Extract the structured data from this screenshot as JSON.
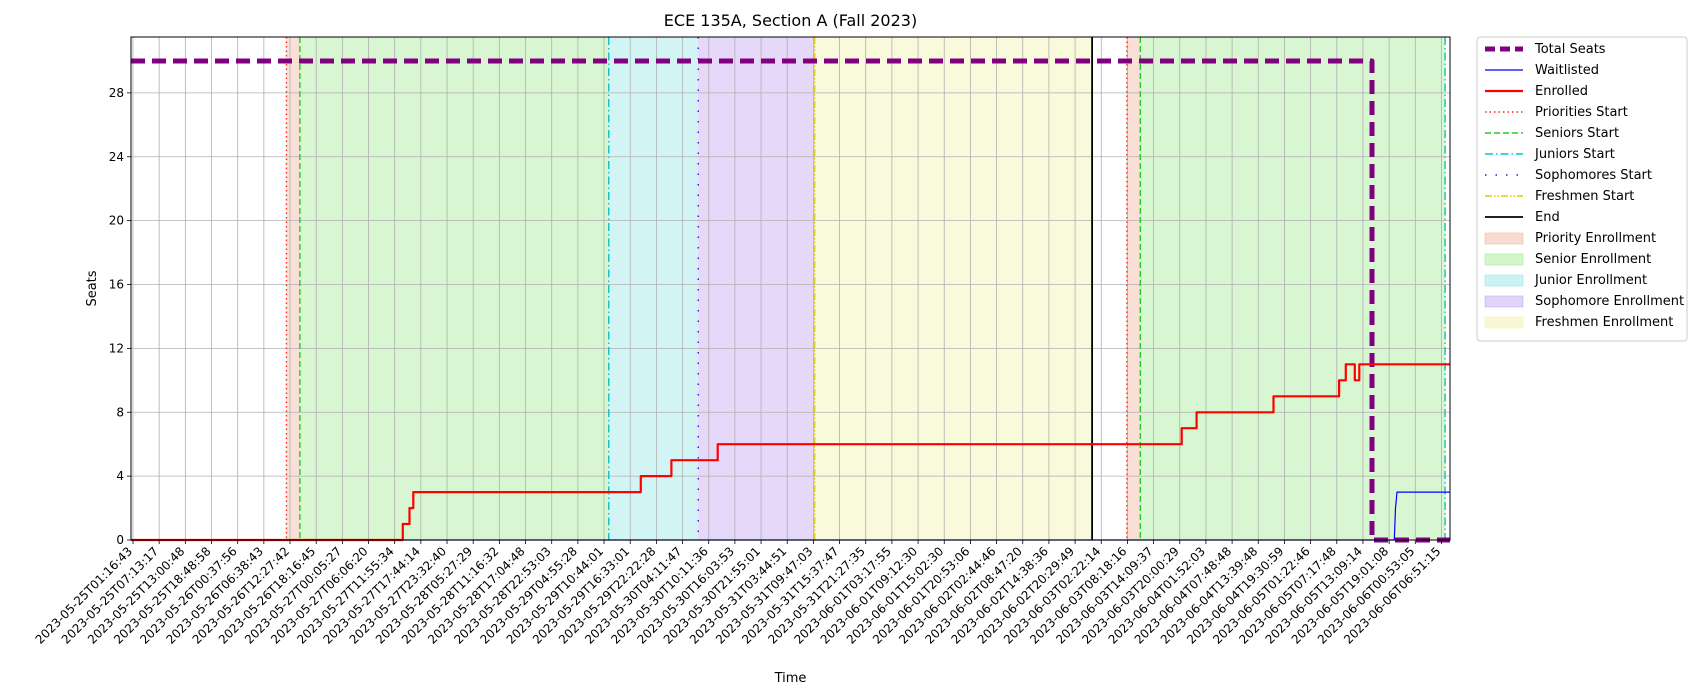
{
  "chart_data": {
    "type": "line",
    "title": "ECE 135A, Section A (Fall 2023)",
    "xlabel": "Time",
    "ylabel": "Seats",
    "ylim": [
      0,
      31.5
    ],
    "xlim": [
      "2023-05-25T01:16:43",
      "2023-06-06T07:56:00"
    ],
    "grid": true,
    "legend_position": "outside-right",
    "x_tick_labels": [
      "2023-05-25T01:16:43",
      "2023-05-25T07:13:17",
      "2023-05-25T13:00:48",
      "2023-05-25T18:48:58",
      "2023-05-26T00:37:56",
      "2023-05-26T06:38:43",
      "2023-05-26T12:27:42",
      "2023-05-26T18:16:45",
      "2023-05-27T00:05:27",
      "2023-05-27T06:06:20",
      "2023-05-27T11:55:34",
      "2023-05-27T17:44:14",
      "2023-05-27T23:32:40",
      "2023-05-28T05:27:29",
      "2023-05-28T11:16:32",
      "2023-05-28T17:04:48",
      "2023-05-28T22:53:03",
      "2023-05-29T04:55:28",
      "2023-05-29T10:44:01",
      "2023-05-29T16:33:01",
      "2023-05-29T22:22:28",
      "2023-05-30T04:11:47",
      "2023-05-30T10:11:36",
      "2023-05-30T16:03:53",
      "2023-05-30T21:55:01",
      "2023-05-31T03:44:51",
      "2023-05-31T09:47:03",
      "2023-05-31T15:37:47",
      "2023-05-31T21:27:35",
      "2023-06-01T03:17:55",
      "2023-06-01T09:12:30",
      "2023-06-01T15:02:30",
      "2023-06-01T20:53:06",
      "2023-06-02T02:44:46",
      "2023-06-02T08:47:20",
      "2023-06-02T14:38:36",
      "2023-06-02T20:29:49",
      "2023-06-03T02:22:14",
      "2023-06-03T08:18:16",
      "2023-06-03T14:09:37",
      "2023-06-03T20:00:29",
      "2023-06-04T01:52:03",
      "2023-06-04T07:48:48",
      "2023-06-04T13:39:48",
      "2023-06-04T19:30:59",
      "2023-06-05T01:22:46",
      "2023-06-05T07:17:48",
      "2023-06-05T13:09:14",
      "2023-06-05T19:01:08",
      "2023-06-06T00:53:05",
      "2023-06-06T06:51:15"
    ],
    "y_ticks": [
      0,
      4,
      8,
      12,
      16,
      20,
      24,
      28
    ],
    "series": [
      {
        "name": "Total Seats",
        "color": "#800080",
        "style": "dashed-thick",
        "points": [
          [
            "2023-05-25T01:16:43",
            30
          ],
          [
            "2023-06-05T13:09:14",
            30
          ],
          [
            "2023-06-05T14:30:00",
            30
          ],
          [
            "2023-06-05T14:30:00",
            0
          ],
          [
            "2023-06-06T07:56:00",
            0
          ]
        ]
      },
      {
        "name": "Waitlisted",
        "color": "#0000ff",
        "style": "solid-thin",
        "points": [
          [
            "2023-05-25T01:16:43",
            0
          ],
          [
            "2023-06-05T19:30:00",
            0
          ],
          [
            "2023-06-05T19:45:00",
            2
          ],
          [
            "2023-06-05T20:05:00",
            3
          ],
          [
            "2023-06-06T07:56:00",
            3
          ]
        ]
      },
      {
        "name": "Enrolled",
        "color": "#ff0000",
        "style": "solid",
        "points": [
          [
            "2023-05-25T01:16:43",
            0
          ],
          [
            "2023-05-27T14:00:00",
            0
          ],
          [
            "2023-05-27T14:00:00",
            1
          ],
          [
            "2023-05-27T15:30:00",
            1
          ],
          [
            "2023-05-27T15:30:00",
            2
          ],
          [
            "2023-05-27T16:20:00",
            2
          ],
          [
            "2023-05-27T16:20:00",
            3
          ],
          [
            "2023-05-29T19:10:00",
            3
          ],
          [
            "2023-05-29T19:10:00",
            4
          ],
          [
            "2023-05-30T02:00:00",
            4
          ],
          [
            "2023-05-30T02:00:00",
            5
          ],
          [
            "2023-05-30T12:20:00",
            5
          ],
          [
            "2023-05-30T12:20:00",
            6
          ],
          [
            "2023-06-03T20:00:00",
            6
          ],
          [
            "2023-06-03T20:00:00",
            7
          ],
          [
            "2023-06-03T23:20:00",
            7
          ],
          [
            "2023-06-03T23:20:00",
            8
          ],
          [
            "2023-06-04T16:30:00",
            8
          ],
          [
            "2023-06-04T16:30:00",
            9
          ],
          [
            "2023-06-05T07:10:00",
            9
          ],
          [
            "2023-06-05T07:10:00",
            10
          ],
          [
            "2023-06-05T08:40:00",
            10
          ],
          [
            "2023-06-05T08:40:00",
            11
          ],
          [
            "2023-06-05T10:40:00",
            11
          ],
          [
            "2023-06-05T10:40:00",
            10
          ],
          [
            "2023-06-05T11:40:00",
            10
          ],
          [
            "2023-06-05T11:40:00",
            11
          ],
          [
            "2023-06-06T07:56:00",
            11
          ]
        ]
      }
    ],
    "vertical_lines": [
      {
        "name": "Priorities Start",
        "color": "#ff2a1a",
        "style": "dotted",
        "x": [
          "2023-05-26T12:00:00",
          "2023-06-03T07:45:00"
        ]
      },
      {
        "name": "Seniors Start",
        "color": "#22cc22",
        "style": "dashed",
        "x": [
          "2023-05-26T15:00:00",
          "2023-06-03T10:45:00"
        ]
      },
      {
        "name": "Juniors Start",
        "color": "#11c0c0",
        "style": "dashdot",
        "x": [
          "2023-05-29T12:00:00",
          "2023-06-06T06:50:00"
        ]
      },
      {
        "name": "Sophomores Start",
        "color": "#5500dd",
        "style": "loosedot",
        "x": [
          "2023-05-30T08:00:00"
        ]
      },
      {
        "name": "Freshmen Start",
        "color": "#ddcc11",
        "style": "dashdotdot",
        "x": [
          "2023-05-31T10:00:00"
        ]
      },
      {
        "name": "End",
        "color": "#000000",
        "style": "solid",
        "x": [
          "2023-06-02T23:59:00"
        ]
      }
    ],
    "shaded_regions": [
      {
        "name": "Priority Enrollment",
        "color": "#f4b9a4",
        "ranges": [
          [
            "2023-05-26T12:00:00",
            "2023-05-26T15:00:00"
          ],
          [
            "2023-06-03T07:45:00",
            "2023-06-03T10:45:00"
          ]
        ]
      },
      {
        "name": "Senior Enrollment",
        "color": "#a6eb9a",
        "ranges": [
          [
            "2023-05-26T15:00:00",
            "2023-05-29T12:00:00"
          ],
          [
            "2023-06-03T10:45:00",
            "2023-06-06T06:50:00"
          ]
        ]
      },
      {
        "name": "Junior Enrollment",
        "color": "#9be6e8",
        "ranges": [
          [
            "2023-05-29T12:00:00",
            "2023-05-30T08:00:00"
          ]
        ]
      },
      {
        "name": "Sophomore Enrollment",
        "color": "#c6a9ef",
        "ranges": [
          [
            "2023-05-30T08:00:00",
            "2023-05-31T10:00:00"
          ]
        ]
      },
      {
        "name": "Freshmen Enrollment",
        "color": "#f2f2b0",
        "ranges": [
          [
            "2023-05-31T10:00:00",
            "2023-06-02T23:59:00"
          ]
        ]
      }
    ],
    "legend": [
      {
        "label": "Total Seats",
        "kind": "line",
        "series": "Total Seats"
      },
      {
        "label": "Waitlisted",
        "kind": "line",
        "series": "Waitlisted"
      },
      {
        "label": "Enrolled",
        "kind": "line",
        "series": "Enrolled"
      },
      {
        "label": "Priorities Start",
        "kind": "vline",
        "series": "Priorities Start"
      },
      {
        "label": "Seniors Start",
        "kind": "vline",
        "series": "Seniors Start"
      },
      {
        "label": "Juniors Start",
        "kind": "vline",
        "series": "Juniors Start"
      },
      {
        "label": "Sophomores Start",
        "kind": "vline",
        "series": "Sophomores Start"
      },
      {
        "label": "Freshmen Start",
        "kind": "vline",
        "series": "Freshmen Start"
      },
      {
        "label": "End",
        "kind": "vline",
        "series": "End"
      },
      {
        "label": "Priority Enrollment",
        "kind": "patch",
        "series": "Priority Enrollment"
      },
      {
        "label": "Senior Enrollment",
        "kind": "patch",
        "series": "Senior Enrollment"
      },
      {
        "label": "Junior Enrollment",
        "kind": "patch",
        "series": "Junior Enrollment"
      },
      {
        "label": "Sophomore Enrollment",
        "kind": "patch",
        "series": "Sophomore Enrollment"
      },
      {
        "label": "Freshmen Enrollment",
        "kind": "patch",
        "series": "Freshmen Enrollment"
      }
    ]
  }
}
